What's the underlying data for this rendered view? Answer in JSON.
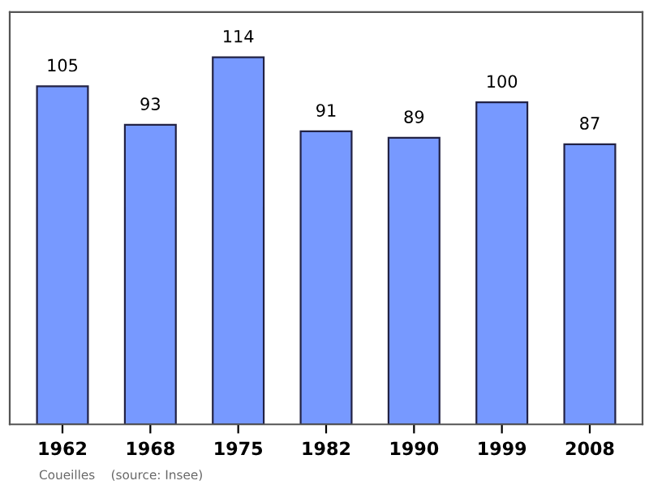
{
  "chart_data": {
    "type": "bar",
    "categories": [
      "1962",
      "1968",
      "1975",
      "1982",
      "1990",
      "1999",
      "2008"
    ],
    "values": [
      105,
      93,
      114,
      91,
      89,
      100,
      87
    ],
    "color": "#7799ff",
    "data_labels": true,
    "ylim": [
      0,
      128
    ],
    "tick_labels": "x",
    "grid": false,
    "annotations": [
      "Coueilles    (source: Insee)"
    ]
  }
}
